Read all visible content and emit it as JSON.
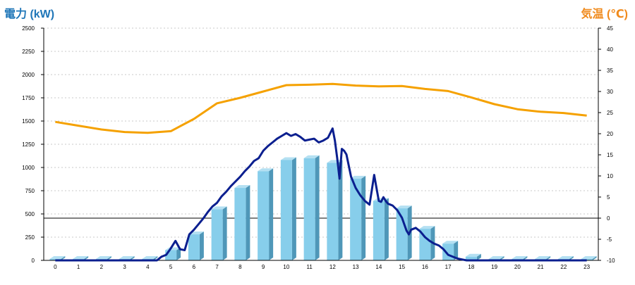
{
  "chart_data": {
    "type": "bar",
    "left_axis_label": "電力 (kW)",
    "right_axis_label": "気温 (℃)",
    "categories": [
      "0",
      "1",
      "2",
      "3",
      "4",
      "5",
      "6",
      "7",
      "8",
      "9",
      "10",
      "11",
      "12",
      "13",
      "14",
      "15",
      "16",
      "17",
      "18",
      "19",
      "20",
      "21",
      "22",
      "23"
    ],
    "left_ylim": [
      0,
      2500
    ],
    "left_ticks": [
      0,
      250,
      500,
      750,
      1000,
      1250,
      1500,
      1750,
      2000,
      2250,
      2500
    ],
    "right_ylim": [
      -10,
      45
    ],
    "right_ticks": [
      -10,
      -5,
      0,
      5,
      10,
      15,
      20,
      25,
      30,
      35,
      40,
      45
    ],
    "grid": true,
    "series": [
      {
        "kind": "bar",
        "axis": "left",
        "color": "#87ceeb",
        "values": [
          15,
          15,
          15,
          15,
          15,
          110,
          280,
          550,
          780,
          960,
          1080,
          1100,
          1050,
          880,
          640,
          560,
          340,
          180,
          40,
          15,
          15,
          15,
          15,
          15
        ]
      },
      {
        "kind": "line",
        "axis": "right",
        "color": "#f5a100",
        "values": [
          22.8,
          21.9,
          21.0,
          20.4,
          20.2,
          20.6,
          23.5,
          27.2,
          28.5,
          30.0,
          31.5,
          31.6,
          31.8,
          31.4,
          31.2,
          31.3,
          30.6,
          30.1,
          28.6,
          27.0,
          25.8,
          25.2,
          24.9,
          24.3
        ]
      },
      {
        "kind": "line",
        "axis": "left",
        "color": "#0b1f8f",
        "x": [
          0,
          4,
          4.4,
          4.6,
          4.8,
          5.0,
          5.2,
          5.4,
          5.6,
          5.8,
          6.0,
          6.2,
          6.4,
          6.6,
          6.8,
          7.0,
          7.2,
          7.4,
          7.6,
          7.8,
          8.0,
          8.2,
          8.4,
          8.6,
          8.8,
          9.0,
          9.2,
          9.4,
          9.6,
          9.8,
          10.0,
          10.2,
          10.4,
          10.6,
          10.8,
          11.0,
          11.2,
          11.4,
          11.6,
          11.8,
          12.0,
          12.1,
          12.2,
          12.3,
          12.4,
          12.5,
          12.6,
          12.8,
          13.0,
          13.2,
          13.4,
          13.6,
          13.8,
          14.0,
          14.1,
          14.2,
          14.3,
          14.4,
          14.5,
          14.6,
          14.8,
          15.0,
          15.1,
          15.2,
          15.3,
          15.4,
          15.6,
          15.8,
          16.0,
          16.2,
          16.4,
          16.6,
          16.8,
          17.0,
          17.2,
          17.4,
          17.6,
          17.8,
          18.0,
          18.2,
          18.4,
          23
        ],
        "values": [
          0,
          0,
          0,
          40,
          60,
          130,
          210,
          120,
          110,
          280,
          330,
          390,
          450,
          520,
          580,
          620,
          690,
          740,
          800,
          850,
          900,
          960,
          1010,
          1070,
          1100,
          1180,
          1230,
          1270,
          1310,
          1340,
          1370,
          1340,
          1360,
          1330,
          1290,
          1300,
          1310,
          1270,
          1290,
          1320,
          1420,
          1290,
          1100,
          880,
          1200,
          1180,
          1140,
          900,
          780,
          700,
          640,
          600,
          920,
          640,
          630,
          680,
          640,
          610,
          600,
          590,
          540,
          460,
          390,
          320,
          280,
          330,
          350,
          310,
          250,
          210,
          180,
          160,
          120,
          60,
          40,
          20,
          10,
          0,
          0,
          0,
          0,
          0
        ]
      }
    ]
  }
}
